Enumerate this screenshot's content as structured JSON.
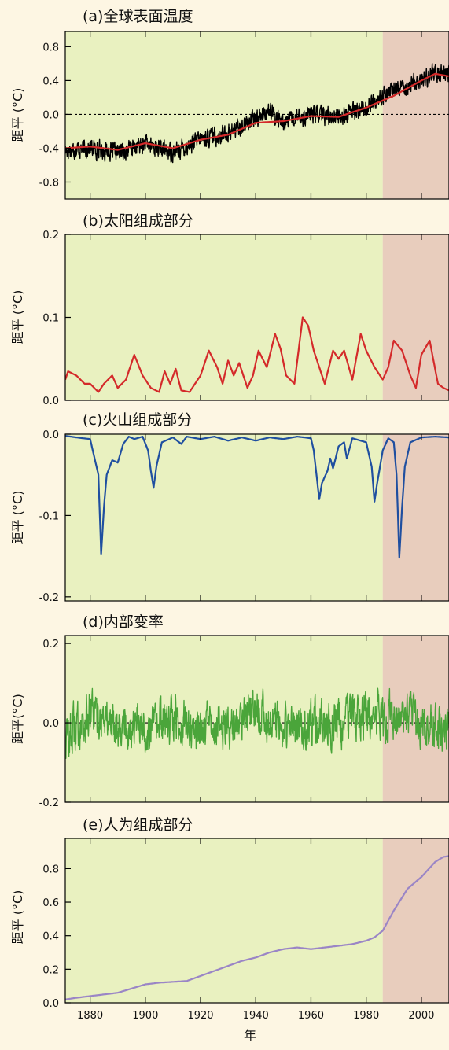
{
  "colors": {
    "background": "#fdf6e3",
    "green_band": "#e9f1c0",
    "pink_band": "#e8cdbd",
    "temp_obs": "#000000",
    "temp_model": "#d42a2a",
    "solar": "#d42a2a",
    "volcanic": "#1f4fa0",
    "internal": "#4aa53a",
    "anthropogenic": "#9a85c6"
  },
  "chart_data": [
    {
      "id": "a",
      "type": "line",
      "title": "(a)全球表面温度",
      "ylabel": "距平 (°C)",
      "xlim": [
        1871,
        2010
      ],
      "ylim": [
        -1.0,
        0.98
      ],
      "yticks": [
        0.8,
        0.4,
        0.0,
        -0.4,
        -0.8
      ],
      "yticklabels": [
        "0.8",
        "0.4",
        "0.0",
        "-0.4",
        "-0.8"
      ],
      "zero_line": true,
      "shaded_split_x": 1986,
      "series": [
        {
          "style": "noisy",
          "color": "#000000",
          "x": [
            1871,
            1880,
            1890,
            1900,
            1910,
            1920,
            1930,
            1940,
            1944,
            1950,
            1960,
            1970,
            1980,
            1990,
            2000,
            2005,
            2010
          ],
          "y": [
            -0.42,
            -0.4,
            -0.45,
            -0.35,
            -0.45,
            -0.3,
            -0.22,
            -0.05,
            0.05,
            -0.1,
            0.0,
            -0.02,
            0.08,
            0.3,
            0.4,
            0.5,
            0.48
          ]
        },
        {
          "style": "smooth",
          "color": "#d42a2a",
          "x": [
            1871,
            1880,
            1890,
            1900,
            1910,
            1920,
            1930,
            1940,
            1950,
            1960,
            1970,
            1980,
            1990,
            2000,
            2005,
            2010
          ],
          "y": [
            -0.4,
            -0.38,
            -0.42,
            -0.34,
            -0.4,
            -0.3,
            -0.24,
            -0.1,
            -0.08,
            -0.02,
            -0.03,
            0.08,
            0.22,
            0.4,
            0.48,
            0.45
          ]
        }
      ]
    },
    {
      "id": "b",
      "type": "line",
      "title": "(b)太阳组成部分",
      "ylabel": "距平 (°C)",
      "xlim": [
        1871,
        2010
      ],
      "ylim": [
        0.0,
        0.2
      ],
      "yticks": [
        0.2,
        0.1,
        0.0
      ],
      "yticklabels": [
        "0.2",
        "0.1",
        "0.0"
      ],
      "zero_line": false,
      "shaded_split_x": 1986,
      "series": [
        {
          "style": "smooth",
          "color": "#d42a2a",
          "x": [
            1871,
            1872,
            1875,
            1878,
            1880,
            1883,
            1885,
            1888,
            1890,
            1893,
            1896,
            1899,
            1902,
            1905,
            1907,
            1909,
            1911,
            1913,
            1916,
            1918,
            1920,
            1923,
            1926,
            1928,
            1930,
            1932,
            1934,
            1937,
            1939,
            1941,
            1944,
            1947,
            1949,
            1951,
            1954,
            1957,
            1959,
            1961,
            1965,
            1968,
            1970,
            1972,
            1975,
            1978,
            1980,
            1983,
            1986,
            1988,
            1990,
            1993,
            1996,
            1998,
            2000,
            2003,
            2006,
            2008,
            2010
          ],
          "y": [
            0.025,
            0.035,
            0.03,
            0.02,
            0.02,
            0.01,
            0.02,
            0.03,
            0.015,
            0.025,
            0.055,
            0.03,
            0.015,
            0.01,
            0.035,
            0.02,
            0.038,
            0.012,
            0.01,
            0.02,
            0.03,
            0.06,
            0.04,
            0.02,
            0.048,
            0.03,
            0.045,
            0.015,
            0.03,
            0.06,
            0.04,
            0.08,
            0.062,
            0.03,
            0.02,
            0.1,
            0.09,
            0.06,
            0.02,
            0.06,
            0.05,
            0.06,
            0.025,
            0.08,
            0.06,
            0.04,
            0.025,
            0.04,
            0.072,
            0.06,
            0.03,
            0.015,
            0.055,
            0.072,
            0.02,
            0.015,
            0.012
          ]
        }
      ]
    },
    {
      "id": "c",
      "type": "line",
      "title": "(c)火山组成部分",
      "ylabel": "距平 (°C)",
      "xlim": [
        1871,
        2010
      ],
      "ylim": [
        -0.205,
        0.0
      ],
      "yticks": [
        0.0,
        -0.1,
        -0.2
      ],
      "yticklabels": [
        "0.0",
        "-0.1",
        "-0.2"
      ],
      "zero_line": false,
      "shaded_split_x": 1986,
      "series": [
        {
          "style": "smooth",
          "color": "#1f4fa0",
          "x": [
            1871,
            1875,
            1880,
            1883,
            1884,
            1885,
            1886,
            1888,
            1890,
            1892,
            1894,
            1896,
            1899,
            1901,
            1902,
            1903,
            1904,
            1906,
            1910,
            1913,
            1915,
            1920,
            1925,
            1930,
            1935,
            1940,
            1945,
            1950,
            1955,
            1960,
            1961,
            1962,
            1963,
            1964,
            1966,
            1967,
            1968,
            1970,
            1972,
            1973,
            1975,
            1978,
            1980,
            1982,
            1983,
            1984,
            1986,
            1988,
            1990,
            1991,
            1992,
            1993,
            1994,
            1996,
            2000,
            2005,
            2010
          ],
          "y": [
            -0.002,
            -0.004,
            -0.006,
            -0.05,
            -0.148,
            -0.09,
            -0.05,
            -0.032,
            -0.035,
            -0.012,
            -0.003,
            -0.006,
            -0.003,
            -0.02,
            -0.045,
            -0.066,
            -0.04,
            -0.01,
            -0.004,
            -0.012,
            -0.003,
            -0.006,
            -0.003,
            -0.008,
            -0.004,
            -0.008,
            -0.004,
            -0.006,
            -0.003,
            -0.005,
            -0.02,
            -0.05,
            -0.08,
            -0.06,
            -0.045,
            -0.03,
            -0.042,
            -0.015,
            -0.01,
            -0.03,
            -0.005,
            -0.008,
            -0.01,
            -0.04,
            -0.083,
            -0.06,
            -0.02,
            -0.005,
            -0.01,
            -0.05,
            -0.152,
            -0.09,
            -0.04,
            -0.01,
            -0.004,
            -0.003,
            -0.004
          ]
        }
      ]
    },
    {
      "id": "d",
      "type": "line",
      "title": "(d)内部变率",
      "ylabel": "距平(°C)",
      "xlim": [
        1871,
        2010
      ],
      "ylim": [
        -0.2,
        0.22
      ],
      "yticks": [
        0.2,
        0.0,
        -0.2
      ],
      "yticklabels": [
        "0.2",
        "0.0",
        "-0.2"
      ],
      "zero_line": true,
      "shaded_split_x": 1986,
      "series": [
        {
          "style": "noisy",
          "color": "#4aa53a",
          "x": [
            1871,
            1880,
            1890,
            1900,
            1910,
            1920,
            1930,
            1940,
            1950,
            1960,
            1970,
            1980,
            1990,
            2000,
            2010
          ],
          "y": [
            -0.04,
            0.02,
            0.0,
            -0.02,
            0.01,
            -0.02,
            0.0,
            0.03,
            -0.02,
            0.0,
            -0.01,
            0.02,
            0.01,
            0.0,
            -0.03
          ]
        }
      ]
    },
    {
      "id": "e",
      "type": "line",
      "title": "(e)人为组成部分",
      "ylabel": "距平 (°C)",
      "xlabel": "年",
      "xlim": [
        1871,
        2010
      ],
      "ylim": [
        0.0,
        0.98
      ],
      "yticks": [
        0.8,
        0.6,
        0.4,
        0.2,
        0.0
      ],
      "yticklabels": [
        "0.8",
        "0.6",
        "0.4",
        "0.2",
        "0.0"
      ],
      "xticks": [
        1880,
        1900,
        1920,
        1940,
        1960,
        1980,
        2000
      ],
      "xticklabels": [
        "1880",
        "1900",
        "1920",
        "1940",
        "1960",
        "1980",
        "2000"
      ],
      "zero_line": false,
      "shaded_split_x": 1986,
      "series": [
        {
          "style": "smooth",
          "color": "#9a85c6",
          "x": [
            1871,
            1875,
            1880,
            1885,
            1890,
            1895,
            1900,
            1905,
            1910,
            1915,
            1920,
            1925,
            1930,
            1935,
            1940,
            1945,
            1950,
            1955,
            1960,
            1965,
            1970,
            1975,
            1980,
            1983,
            1986,
            1990,
            1995,
            2000,
            2005,
            2008,
            2010
          ],
          "y": [
            0.02,
            0.03,
            0.04,
            0.05,
            0.06,
            0.085,
            0.11,
            0.12,
            0.125,
            0.13,
            0.16,
            0.19,
            0.22,
            0.25,
            0.27,
            0.3,
            0.32,
            0.33,
            0.32,
            0.33,
            0.34,
            0.35,
            0.37,
            0.39,
            0.43,
            0.55,
            0.68,
            0.75,
            0.84,
            0.87,
            0.875
          ]
        }
      ]
    }
  ]
}
